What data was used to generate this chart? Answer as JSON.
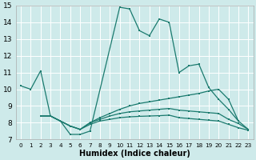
{
  "xlabel": "Humidex (Indice chaleur)",
  "bg_color": "#ceeaea",
  "line_color": "#1a7a6e",
  "xlim": [
    -0.5,
    23.5
  ],
  "ylim": [
    7,
    15
  ],
  "xticks": [
    0,
    1,
    2,
    3,
    4,
    5,
    6,
    7,
    8,
    9,
    10,
    11,
    12,
    13,
    14,
    15,
    16,
    17,
    18,
    19,
    20,
    21,
    22,
    23
  ],
  "yticks": [
    7,
    8,
    9,
    10,
    11,
    12,
    13,
    14,
    15
  ],
  "line1_x": [
    0,
    1,
    2,
    3,
    4,
    5,
    6,
    7,
    10,
    11,
    12,
    13,
    14,
    15,
    16,
    17,
    18,
    19,
    20,
    21,
    22
  ],
  "line1_y": [
    10.2,
    10.0,
    11.1,
    8.4,
    8.1,
    7.3,
    7.3,
    7.5,
    14.9,
    14.8,
    13.5,
    13.2,
    14.2,
    14.0,
    11.0,
    11.4,
    11.5,
    10.1,
    9.4,
    8.8,
    8.1
  ],
  "line2_x": [
    2,
    3,
    4,
    5,
    6,
    7,
    8,
    9,
    10,
    11,
    12,
    13,
    14,
    15,
    16,
    17,
    18,
    19,
    20,
    21,
    22,
    23
  ],
  "line2_y": [
    8.4,
    8.4,
    8.1,
    7.8,
    7.6,
    8.0,
    8.3,
    8.55,
    8.8,
    9.0,
    9.15,
    9.25,
    9.35,
    9.45,
    9.55,
    9.65,
    9.75,
    9.9,
    10.0,
    9.4,
    8.1,
    7.6
  ],
  "line3_x": [
    2,
    3,
    4,
    5,
    6,
    7,
    8,
    9,
    10,
    11,
    12,
    13,
    14,
    15,
    16,
    17,
    18,
    19,
    20,
    21,
    22,
    23
  ],
  "line3_y": [
    8.4,
    8.4,
    8.1,
    7.8,
    7.6,
    8.0,
    8.2,
    8.4,
    8.55,
    8.65,
    8.7,
    8.75,
    8.8,
    8.85,
    8.75,
    8.7,
    8.65,
    8.6,
    8.55,
    8.2,
    7.95,
    7.6
  ],
  "line4_x": [
    2,
    3,
    4,
    5,
    6,
    7,
    8,
    9,
    10,
    11,
    12,
    13,
    14,
    15,
    16,
    17,
    18,
    19,
    20,
    21,
    22,
    23
  ],
  "line4_y": [
    8.4,
    8.4,
    8.1,
    7.8,
    7.6,
    7.9,
    8.1,
    8.2,
    8.3,
    8.35,
    8.38,
    8.4,
    8.42,
    8.45,
    8.3,
    8.25,
    8.2,
    8.15,
    8.1,
    7.9,
    7.7,
    7.55
  ]
}
